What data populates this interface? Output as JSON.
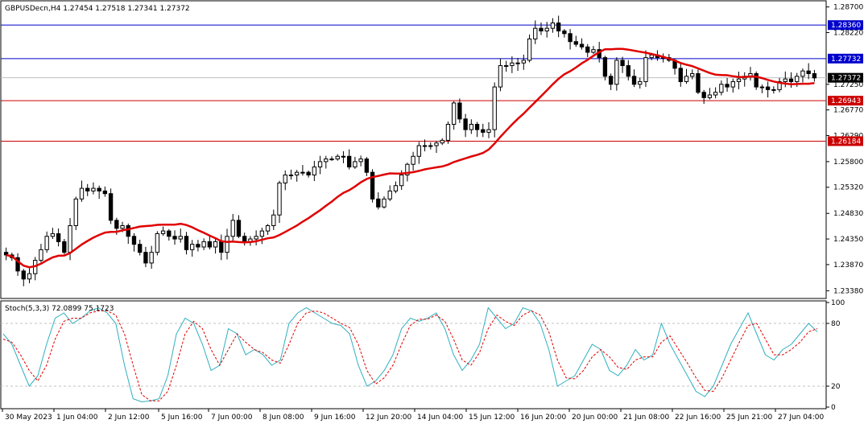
{
  "symbol_info": "GBPUSDecn,H4  1.27454 1.27518 1.27341 1.27372",
  "indicator_info": "Stoch(5,3,3) 72.0899 75.1723",
  "colors": {
    "background": "#ffffff",
    "candle": "#000000",
    "ma_line": "#e00000",
    "h_blue": "#0000cc",
    "h_red": "#cc0000",
    "current_price_line": "#c0c0c0",
    "stoch_main": "#30b0c0",
    "stoch_signal": "#e00000",
    "stoch_level": "#c0c0c0"
  },
  "chart_data": [
    {
      "type": "candlestick",
      "title": "GBPUSDecn,H4",
      "ylim": [
        1.2325,
        1.288
      ],
      "y_ticks": [
        "1.28700",
        "1.28220",
        "1.27250",
        "1.26770",
        "1.26290",
        "1.25800",
        "1.25320",
        "1.24830",
        "1.24350",
        "1.23870",
        "1.23380"
      ],
      "x_ticks": [
        "30 May 2023",
        "1 Jun 04:00",
        "2 Jun 12:00",
        "5 Jun 16:00",
        "7 Jun 00:00",
        "8 Jun 08:00",
        "9 Jun 16:00",
        "12 Jun 20:00",
        "14 Jun 04:00",
        "15 Jun 12:00",
        "16 Jun 20:00",
        "20 Jun 00:00",
        "21 Jun 08:00",
        "22 Jun 16:00",
        "25 Jun 21:00",
        "27 Jun 04:00"
      ],
      "horizontal_lines": [
        {
          "value": 1.2836,
          "label": "1.28360",
          "color": "blue"
        },
        {
          "value": 1.27732,
          "label": "1.27732",
          "color": "blue"
        },
        {
          "value": 1.26943,
          "label": "1.26943",
          "color": "red"
        },
        {
          "value": 1.26184,
          "label": "1.26184",
          "color": "red"
        }
      ],
      "current_price": {
        "value": 1.27372,
        "label": "1.27372"
      },
      "closes": [
        1.2405,
        1.24,
        1.2375,
        1.236,
        1.237,
        1.2395,
        1.2415,
        1.244,
        1.2445,
        1.243,
        1.241,
        1.246,
        1.251,
        1.253,
        1.2525,
        1.253,
        1.2525,
        1.252,
        1.247,
        1.2455,
        1.246,
        1.244,
        1.2425,
        1.241,
        1.239,
        1.241,
        1.2445,
        1.245,
        1.244,
        1.2435,
        1.244,
        1.2415,
        1.2425,
        1.242,
        1.243,
        1.242,
        1.243,
        1.241,
        1.244,
        1.247,
        1.244,
        1.243,
        1.2435,
        1.244,
        1.245,
        1.246,
        1.248,
        1.254,
        1.2555,
        1.2555,
        1.256,
        1.256,
        1.2555,
        1.257,
        1.258,
        1.2585,
        1.2585,
        1.259,
        1.259,
        1.257,
        1.258,
        1.2585,
        1.256,
        1.251,
        1.2495,
        1.251,
        1.2525,
        1.2535,
        1.2555,
        1.2575,
        1.259,
        1.261,
        1.261,
        1.261,
        1.2615,
        1.262,
        1.265,
        1.269,
        1.266,
        1.264,
        1.265,
        1.264,
        1.2635,
        1.264,
        1.272,
        1.276,
        1.276,
        1.2765,
        1.2765,
        1.277,
        1.281,
        1.283,
        1.2825,
        1.283,
        1.284,
        1.2825,
        1.282,
        1.2805,
        1.28,
        1.2795,
        1.2785,
        1.279,
        1.2775,
        1.274,
        1.2725,
        1.277,
        1.276,
        1.274,
        1.2725,
        1.273,
        1.2775,
        1.278,
        1.2775,
        1.2775,
        1.277,
        1.2755,
        1.273,
        1.274,
        1.2745,
        1.271,
        1.27,
        1.2705,
        1.271,
        1.2725,
        1.272,
        1.273,
        1.2735,
        1.274,
        1.2745,
        1.272,
        1.272,
        1.2715,
        1.2715,
        1.273,
        1.2735,
        1.273,
        1.274,
        1.275,
        1.2745,
        1.2737
      ],
      "ma_period": 20
    },
    {
      "type": "line",
      "title": "Stoch(5,3,3)",
      "ylim": [
        0,
        100
      ],
      "y_ticks": [
        "100",
        "80",
        "20",
        "0"
      ],
      "levels": [
        80,
        20
      ],
      "series": [
        {
          "name": "main",
          "values": [
            70,
            60,
            40,
            20,
            30,
            60,
            85,
            90,
            80,
            85,
            92,
            95,
            90,
            80,
            40,
            8,
            5,
            6,
            8,
            30,
            70,
            85,
            80,
            60,
            35,
            40,
            75,
            70,
            50,
            55,
            50,
            40,
            45,
            80,
            90,
            95,
            90,
            85,
            80,
            78,
            70,
            40,
            20,
            25,
            35,
            50,
            75,
            85,
            82,
            85,
            90,
            75,
            50,
            35,
            45,
            60,
            95,
            85,
            75,
            80,
            95,
            92,
            80,
            55,
            20,
            25,
            30,
            45,
            60,
            55,
            35,
            30,
            40,
            55,
            45,
            50,
            80,
            60,
            45,
            30,
            15,
            10,
            20,
            40,
            60,
            75,
            90,
            70,
            50,
            45,
            55,
            60,
            70,
            80,
            72
          ]
        },
        {
          "name": "signal",
          "values": [
            65,
            62,
            50,
            35,
            25,
            40,
            65,
            82,
            85,
            85,
            90,
            92,
            92,
            88,
            70,
            40,
            12,
            6,
            6,
            15,
            40,
            70,
            82,
            75,
            55,
            40,
            55,
            70,
            62,
            55,
            52,
            45,
            42,
            60,
            80,
            90,
            92,
            90,
            85,
            80,
            76,
            60,
            35,
            22,
            28,
            40,
            60,
            78,
            84,
            84,
            88,
            82,
            65,
            45,
            40,
            52,
            75,
            88,
            82,
            78,
            88,
            92,
            88,
            72,
            45,
            28,
            27,
            35,
            48,
            55,
            48,
            38,
            36,
            45,
            48,
            48,
            62,
            68,
            55,
            42,
            28,
            16,
            15,
            28,
            45,
            62,
            78,
            80,
            65,
            50,
            50,
            55,
            62,
            72,
            75
          ]
        }
      ]
    }
  ]
}
